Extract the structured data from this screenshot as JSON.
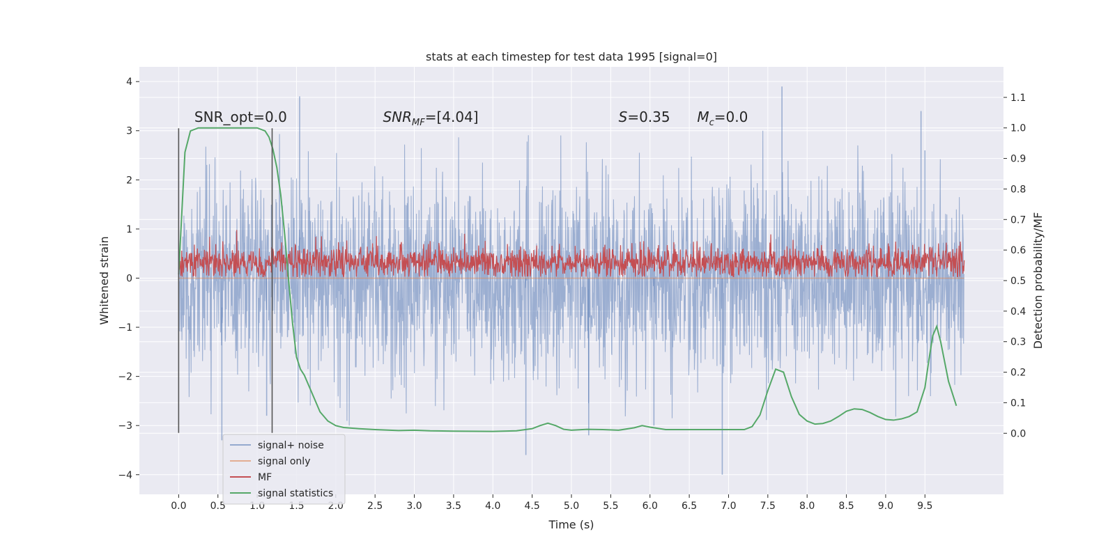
{
  "chart_data": {
    "type": "line",
    "title": "stats at each timestep for test data 1995 [signal=0]",
    "xlabel": "Time (s)",
    "ylabel": "Whitened strain",
    "y2label": "Detection probability/MF",
    "xlim": [
      -0.5,
      10.5
    ],
    "ylim": [
      -4.4,
      4.3
    ],
    "y2lim": [
      -0.2,
      1.2
    ],
    "xticks": [
      0.0,
      0.5,
      1.0,
      1.5,
      2.0,
      2.5,
      3.0,
      3.5,
      4.0,
      4.5,
      5.0,
      5.5,
      6.0,
      6.5,
      7.0,
      7.5,
      8.0,
      8.5,
      9.0,
      9.5
    ],
    "yticks": [
      -4,
      -3,
      -2,
      -1,
      0,
      1,
      2,
      3,
      4
    ],
    "y2ticks": [
      0.0,
      0.1,
      0.2,
      0.3,
      0.4,
      0.5,
      0.6,
      0.7,
      0.8,
      0.9,
      1.0,
      1.1
    ],
    "grid": true,
    "legend_position": "lower-left",
    "series": [
      {
        "name": "signal+ noise",
        "axis": "left",
        "color": "#4c72b0",
        "x_range": [
          0.0,
          10.0
        ],
        "mean": 0.0,
        "std": 1.0,
        "extremes": [
          [
            1.54,
            3.7
          ],
          [
            7.68,
            3.9
          ],
          [
            9.45,
            3.4
          ],
          [
            6.92,
            -4.0
          ],
          [
            4.42,
            -3.6
          ],
          [
            5.22,
            -3.2
          ],
          [
            0.55,
            -3.3
          ],
          [
            1.12,
            -2.8
          ],
          [
            9.5,
            2.6
          ],
          [
            6.05,
            -3.0
          ]
        ]
      },
      {
        "name": "signal only",
        "axis": "left",
        "color": "#dd8452",
        "x_range": [
          0.0,
          10.0
        ],
        "values_constant": 0.0
      },
      {
        "name": "MF",
        "axis": "left",
        "color": "#c44e52",
        "x_range": [
          0.0,
          10.0
        ],
        "baseline": 0.32,
        "low": 0.03,
        "high": 0.98
      },
      {
        "name": "signal statistics",
        "axis": "right",
        "color": "#55a868",
        "x": [
          0.0,
          0.08,
          0.15,
          0.25,
          0.4,
          0.6,
          0.8,
          1.0,
          1.1,
          1.15,
          1.2,
          1.25,
          1.3,
          1.35,
          1.4,
          1.45,
          1.5,
          1.55,
          1.6,
          1.7,
          1.8,
          1.9,
          2.0,
          2.1,
          2.3,
          2.5,
          2.8,
          3.0,
          3.2,
          3.5,
          4.0,
          4.3,
          4.5,
          4.6,
          4.7,
          4.8,
          4.9,
          5.0,
          5.2,
          5.4,
          5.6,
          5.8,
          5.9,
          6.0,
          6.2,
          6.5,
          7.0,
          7.2,
          7.3,
          7.4,
          7.5,
          7.6,
          7.7,
          7.8,
          7.9,
          8.0,
          8.1,
          8.2,
          8.3,
          8.4,
          8.5,
          8.6,
          8.7,
          8.8,
          8.9,
          9.0,
          9.1,
          9.2,
          9.3,
          9.4,
          9.5,
          9.55,
          9.6,
          9.65,
          9.7,
          9.8,
          9.9
        ],
        "values": [
          0.52,
          0.92,
          0.99,
          1.0,
          1.0,
          1.0,
          1.0,
          1.0,
          0.99,
          0.97,
          0.93,
          0.87,
          0.78,
          0.65,
          0.5,
          0.36,
          0.25,
          0.21,
          0.19,
          0.13,
          0.07,
          0.04,
          0.025,
          0.019,
          0.015,
          0.012,
          0.009,
          0.01,
          0.008,
          0.007,
          0.006,
          0.008,
          0.015,
          0.025,
          0.033,
          0.025,
          0.013,
          0.01,
          0.013,
          0.012,
          0.01,
          0.018,
          0.025,
          0.02,
          0.012,
          0.012,
          0.012,
          0.012,
          0.022,
          0.06,
          0.14,
          0.21,
          0.2,
          0.12,
          0.062,
          0.04,
          0.03,
          0.032,
          0.04,
          0.055,
          0.072,
          0.08,
          0.078,
          0.068,
          0.055,
          0.045,
          0.043,
          0.047,
          0.055,
          0.07,
          0.15,
          0.24,
          0.32,
          0.35,
          0.3,
          0.17,
          0.09
        ]
      }
    ],
    "vlines": [
      0.0,
      1.19
    ],
    "annotations": [
      {
        "text": "SNR_opt=0.0",
        "x": 0.2,
        "y2": 1.02
      },
      {
        "text": "SNR",
        "sub": "MF",
        "rest": "=[4.04]",
        "x": 2.6,
        "y2": 1.02
      },
      {
        "text": "S",
        "rest": "=0.35",
        "x": 5.6,
        "y2": 1.02
      },
      {
        "text": "M",
        "sub": "c",
        "rest": "=0.0",
        "x": 6.6,
        "y2": 1.02
      }
    ]
  }
}
